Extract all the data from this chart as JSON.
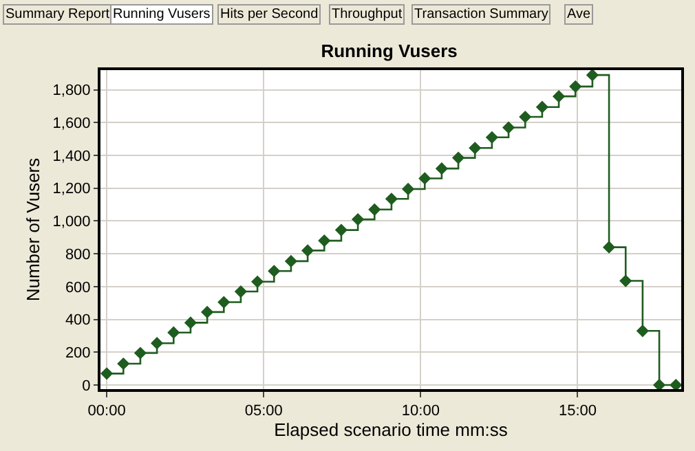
{
  "chart_data": {
    "type": "step",
    "title": "Running Vusers",
    "xlabel": "Elapsed scenario time mm:ss",
    "ylabel": "Number of Vusers",
    "annotations": [
      "Summary Report",
      "Running Vusers",
      "Hits per Second",
      "Throughput",
      "Transaction Summary",
      "Ave"
    ],
    "x": [
      0,
      0.53,
      1.07,
      1.6,
      2.13,
      2.67,
      3.2,
      3.73,
      4.27,
      4.8,
      5.33,
      5.87,
      6.4,
      6.93,
      7.47,
      8,
      8.53,
      9.07,
      9.6,
      10.13,
      10.67,
      11.2,
      11.73,
      12.27,
      12.8,
      13.33,
      13.87,
      14.4,
      14.93,
      15.47,
      16.0,
      16.53,
      17.07,
      17.6,
      18.13
    ],
    "series": [
      {
        "color": "#1f5c1f",
        "values": [
          70,
          130,
          195,
          255,
          320,
          380,
          445,
          505,
          570,
          630,
          695,
          755,
          820,
          880,
          945,
          1010,
          1070,
          1135,
          1195,
          1260,
          1320,
          1385,
          1445,
          1510,
          1570,
          1635,
          1695,
          1760,
          1820,
          1890,
          840,
          635,
          330,
          0,
          0
        ]
      }
    ],
    "xlim": [
      -0.2,
      18.3
    ],
    "xticks": [
      {
        "value": 0,
        "label": "00:00"
      },
      {
        "value": 5,
        "label": "05:00"
      },
      {
        "value": 10,
        "label": "10:00"
      },
      {
        "value": 15,
        "label": "15:00"
      }
    ],
    "ylim": [
      -25,
      1920
    ],
    "yticks": [
      {
        "value": 0,
        "label": "0"
      },
      {
        "value": 200,
        "label": "200"
      },
      {
        "value": 400,
        "label": "400"
      },
      {
        "value": 600,
        "label": "600"
      },
      {
        "value": 800,
        "label": "800"
      },
      {
        "value": 1000,
        "label": "1,000"
      },
      {
        "value": 1200,
        "label": "1,200"
      },
      {
        "value": 1400,
        "label": "1,400"
      },
      {
        "value": 1600,
        "label": "1,600"
      },
      {
        "value": 1800,
        "label": "1,800"
      }
    ],
    "grid": true,
    "marker": "diamond",
    "line_style": "solid",
    "legend": false
  }
}
